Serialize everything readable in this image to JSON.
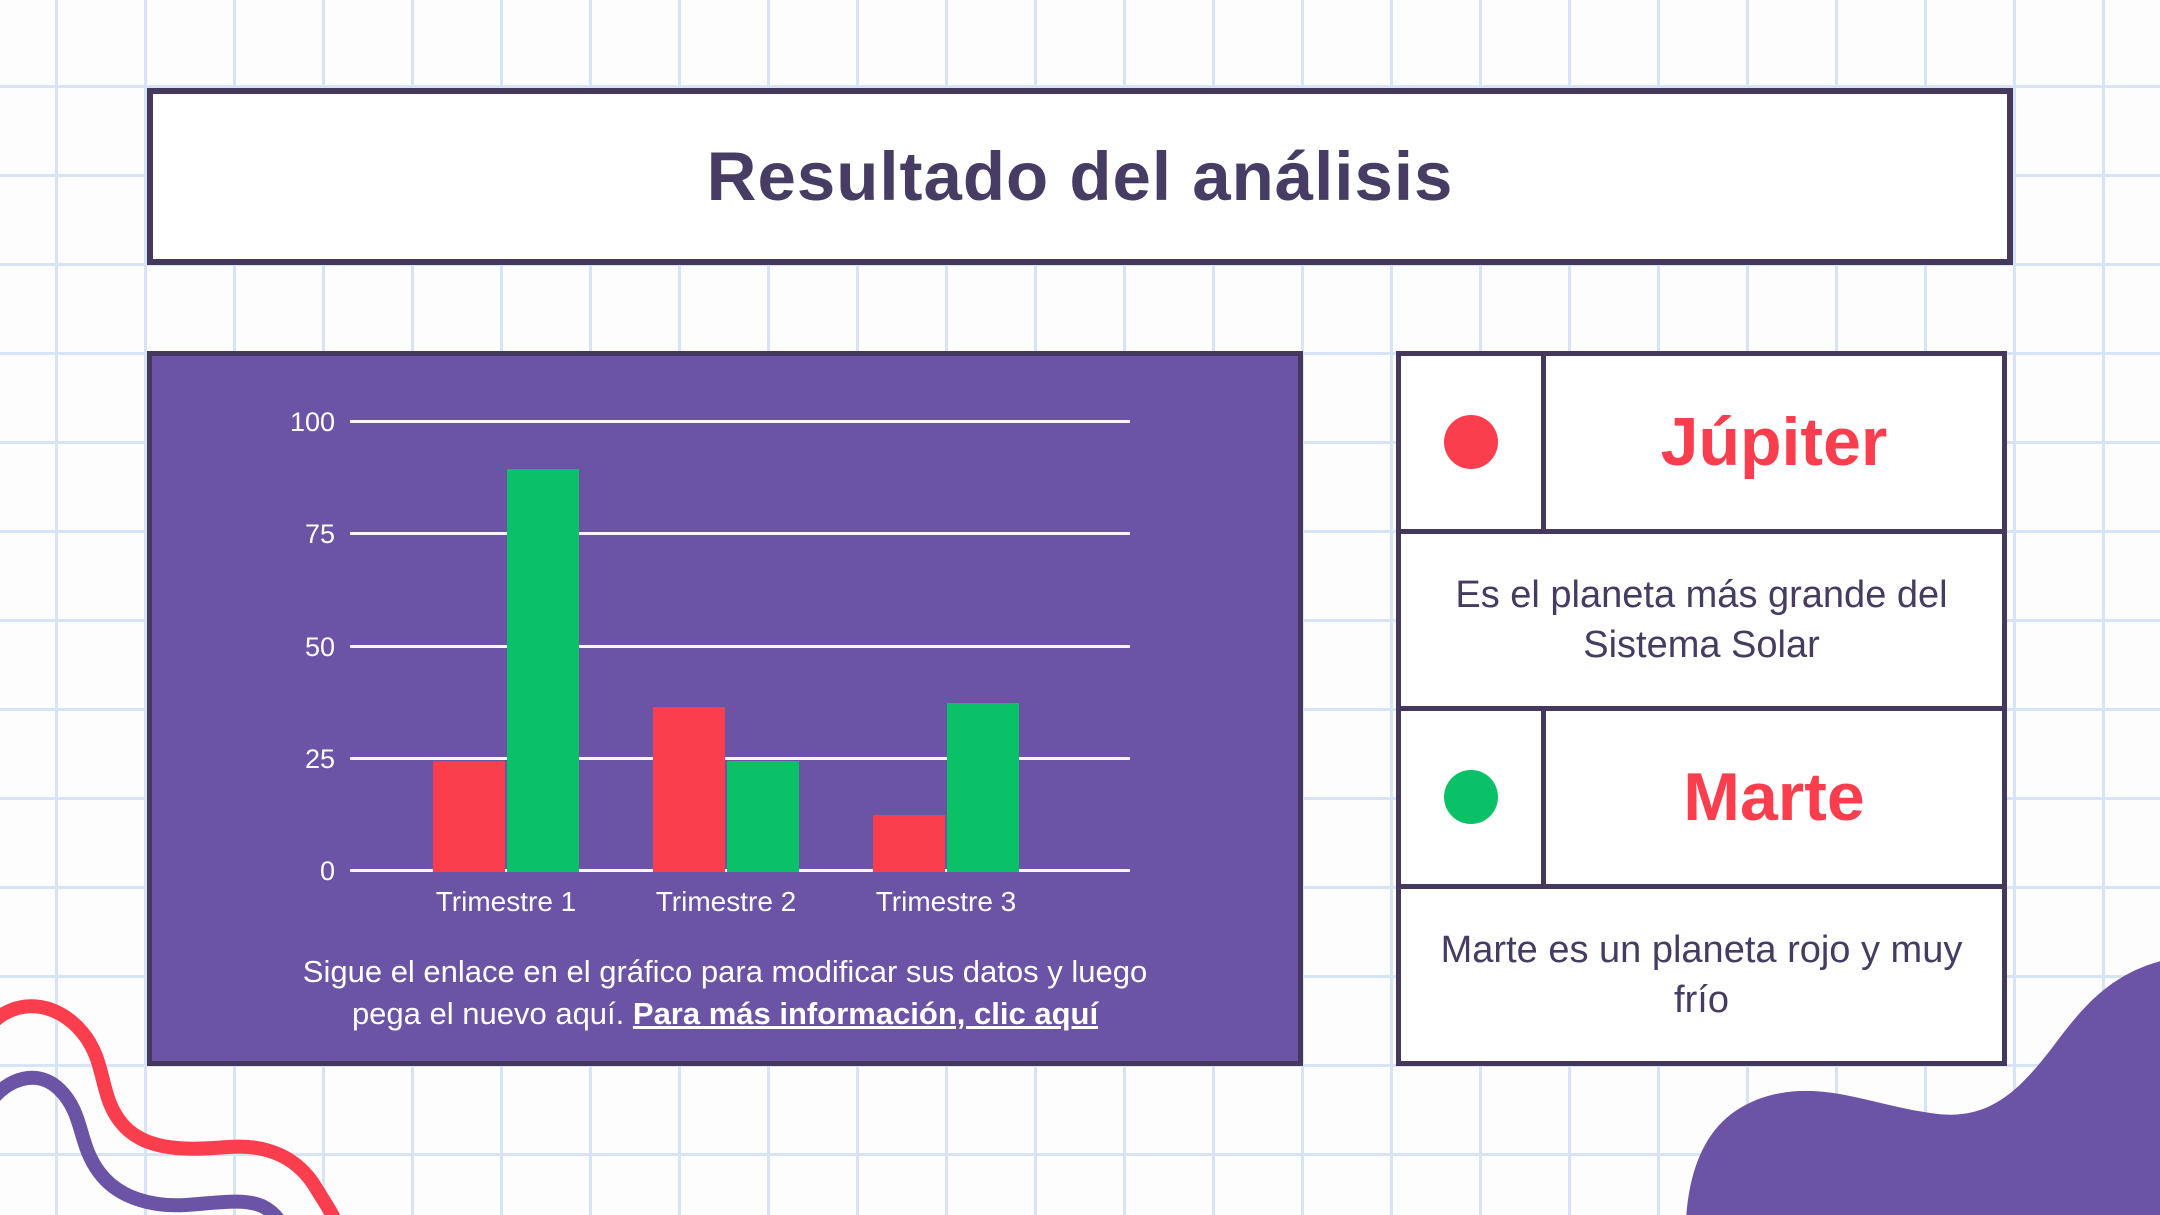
{
  "slide": {
    "title": "Resultado del análisis"
  },
  "chart_panel": {
    "caption_line1": "Sigue el enlace en el gráfico para modificar sus datos y luego",
    "caption_line2_prefix": "pega el nuevo aquí. ",
    "caption_link": "Para más información, clic aquí"
  },
  "chart_data": {
    "type": "bar",
    "categories": [
      "Trimestre 1",
      "Trimestre 2",
      "Trimestre 3"
    ],
    "series": [
      {
        "name": "Júpiter",
        "color": "#fb3e4e",
        "values": [
          24,
          36,
          12
        ]
      },
      {
        "name": "Marte",
        "color": "#0bc168",
        "values": [
          89,
          24,
          37
        ]
      }
    ],
    "title": "",
    "xlabel": "",
    "ylabel": "",
    "ylim": [
      0,
      100
    ],
    "yticks": [
      0,
      25,
      50,
      75,
      100
    ],
    "grid": true,
    "legend_position": "right-table",
    "plot_background": "#6b53a5",
    "tick_color": "#ffffff"
  },
  "legend": {
    "items": [
      {
        "name": "Júpiter",
        "color": "#fb3e4e",
        "description": "Es el planeta más grande del Sistema Solar"
      },
      {
        "name": "Marte",
        "color": "#0bc168",
        "description": "Marte es un planeta rojo y muy frío"
      }
    ]
  },
  "colors": {
    "accent_purple": "#6b53a5",
    "dark_purple": "#44395c",
    "red": "#fb3e4e",
    "green": "#0bc168",
    "grid_paper_blue": "#d6e4f6",
    "gridline_white": "#f7f5fa"
  }
}
